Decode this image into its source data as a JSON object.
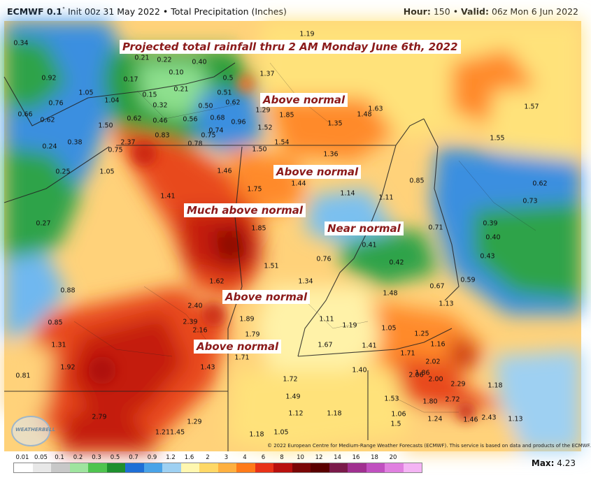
{
  "header": {
    "model": "ECMWF 0.1",
    "degree": "°",
    "init": "Init 00z 31 May 2022",
    "bullet": "•",
    "product": "Total Precipitation (Inches)",
    "hour_label": "Hour:",
    "hour_value": "150",
    "valid_label": "Valid:",
    "valid_value": "06z Mon 6 Jun 2022"
  },
  "title": "Projected total rainfall thru 2 AM Monday June 6th, 2022",
  "callouts": {
    "c1": "Above normal",
    "c2": "Above normal",
    "c3": "Much above normal",
    "c4": "Near normal",
    "c5": "Above normal",
    "c6": "Above normal"
  },
  "values": {
    "v1": "0.34",
    "v2": "0.92",
    "v3": "0.76",
    "v4": "0.66",
    "v5": "0.62",
    "v6": "0.24",
    "v7": "0.38",
    "v8": "0.25",
    "v9": "0.27",
    "v10": "0.88",
    "v11": "0.85",
    "v12": "1.31",
    "v13": "1.92",
    "v14": "0.81",
    "v15": "2.79",
    "v16": "1.211.45",
    "v17": "1.29",
    "v18": "1.18",
    "v19": "1.05",
    "v20": "1.05",
    "v21": "1.04",
    "v22": "1.50",
    "v23": "0.75",
    "v24": "2.37",
    "v25": "0.21",
    "v26": "0.22",
    "v27": "0.40",
    "v28": "0.17",
    "v29": "0.10",
    "v30": "0.21",
    "v31": "0.15",
    "v32": "0.32",
    "v33": "0.62",
    "v34": "0.46",
    "v35": "0.56",
    "v36": "0.83",
    "v37": "0.78",
    "v38": "0.50",
    "v39": "0.51",
    "v40": "0.62",
    "v41": "0.68",
    "v42": "0.75",
    "v43": "0.74",
    "v44": "0.96",
    "v45": "0.5",
    "v46": "1.37",
    "v47": "1.19",
    "v48": "1.29",
    "v49": "1.85",
    "v50": "1.52",
    "v51": "1.54",
    "v52": "1.35",
    "v53": "1.48",
    "v54": "1.63",
    "v55": "1.57",
    "v56": "1.55",
    "v57": "1.50",
    "v58": "1.36",
    "v59": "1.46",
    "v60": "1.75",
    "v61": "1.44",
    "v62": "1.14",
    "v63": "1.11",
    "v64": "0.85",
    "v65": "0.62",
    "v66": "0.73",
    "v67": "1.41",
    "v68": "1.85",
    "v69": "0.71",
    "v70": "0.39",
    "v71": "0.40",
    "v72": "0.41",
    "v73": "0.42",
    "v74": "0.43",
    "v75": "0.76",
    "v76": "1.51",
    "v77": "1.62",
    "v78": "1.34",
    "v79": "0.67",
    "v80": "0.59",
    "v81": "1.48",
    "v82": "1.13",
    "v83": "2.40",
    "v84": "2.39",
    "v85": "2.16",
    "v86": "1.89",
    "v87": "1.11",
    "v88": "1.19",
    "v89": "1.05",
    "v90": "1.25",
    "v91": "1.79",
    "v92": "1.71",
    "v93": "1.67",
    "v94": "1.41",
    "v95": "1.16",
    "v96": "1.71",
    "v97": "2.02",
    "v98": "1.43",
    "v99": "1.40",
    "v100": "2.06",
    "v101": "1.86",
    "v102": "2.00",
    "v103": "2.29",
    "v104": "1.18",
    "v105": "1.72",
    "v106": "1.49",
    "v107": "1.53",
    "v108": "1.80",
    "v109": "2.72",
    "v110": "1.12",
    "v111": "1.18",
    "v112": "1.06",
    "v113": "1.24",
    "v114": "1.46",
    "v115": "2.43",
    "v116": "1.13",
    "v117": "1.05",
    "v118": "1.5"
  },
  "copyright": "© 2022 European Centre for Medium-Range Weather Forecasts (ECMWF). This service is based on data and products of the ECMWF.",
  "logo_text": "WEATHERBELL",
  "legend": {
    "labels": [
      "0.01",
      "0.05",
      "0.1",
      "0.2",
      "0.3",
      "0.5",
      "0.7",
      "0.9",
      "1.2",
      "1.6",
      "2",
      "3",
      "4",
      "6",
      "8",
      "10",
      "12",
      "14",
      "16",
      "18",
      "20"
    ],
    "colors": [
      "#ffffff",
      "#e8e8e8",
      "#c8c8c8",
      "#9fe49f",
      "#4fc44f",
      "#1e8f2e",
      "#1f6fd6",
      "#4aa3e8",
      "#9ed0f2",
      "#fff7b0",
      "#ffd866",
      "#ffb040",
      "#ff7a1a",
      "#e83218",
      "#b8100e",
      "#7a0606",
      "#5a0000",
      "#7a1a4a",
      "#a03090",
      "#c050c0",
      "#e080e0",
      "#f4b4f4"
    ],
    "max_label": "Max:",
    "max_value": "4.23"
  }
}
